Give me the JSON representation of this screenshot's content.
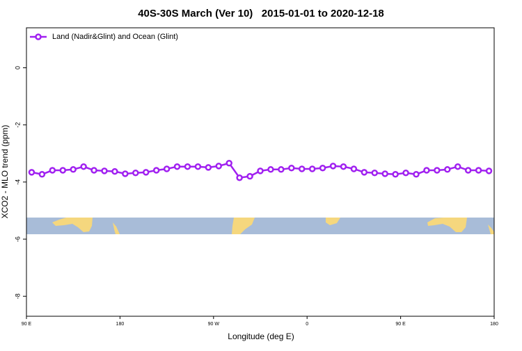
{
  "chart_data": {
    "type": "line",
    "title": "40S-30S March (Ver 10)   2015-01-01 to 2020-12-18",
    "x_label": "Longitude (deg E)",
    "y_label": "XCO2 - MLO trend (ppm)",
    "x": [
      95,
      105,
      115,
      125,
      135,
      145,
      155,
      165,
      175,
      185,
      195,
      205,
      215,
      225,
      235,
      245,
      255,
      265,
      275,
      285,
      295,
      305,
      315,
      325,
      335,
      345,
      355,
      365,
      375,
      385,
      395,
      405,
      415,
      425,
      435,
      445,
      455,
      465,
      475,
      485,
      495,
      505,
      515,
      525,
      535
    ],
    "series": [
      {
        "name": "Land (Nadir&Glint) and Ocean (Glint)",
        "color": "#a020f0",
        "values": [
          -3.66,
          -3.73,
          -3.59,
          -3.59,
          -3.56,
          -3.46,
          -3.59,
          -3.61,
          -3.63,
          -3.71,
          -3.68,
          -3.66,
          -3.59,
          -3.54,
          -3.46,
          -3.46,
          -3.46,
          -3.49,
          -3.44,
          -3.34,
          -3.85,
          -3.8,
          -3.61,
          -3.56,
          -3.56,
          -3.51,
          -3.54,
          -3.54,
          -3.51,
          -3.44,
          -3.46,
          -3.54,
          -3.66,
          -3.68,
          -3.71,
          -3.73,
          -3.68,
          -3.73,
          -3.59,
          -3.59,
          -3.56,
          -3.46,
          -3.59,
          -3.59,
          -3.61
        ]
      }
    ],
    "xlim": [
      90,
      540
    ],
    "xticks": [
      {
        "value": 90,
        "label": "90 E"
      },
      {
        "value": 180,
        "label": "180"
      },
      {
        "value": 270,
        "label": "90 W"
      },
      {
        "value": 360,
        "label": "0"
      },
      {
        "value": 450,
        "label": "90 E"
      },
      {
        "value": 540,
        "label": "180"
      }
    ],
    "ylim": [
      -8.7,
      1.4
    ],
    "yticks": [
      0,
      -2,
      -4,
      -6,
      -8
    ],
    "legend": "top-left"
  }
}
